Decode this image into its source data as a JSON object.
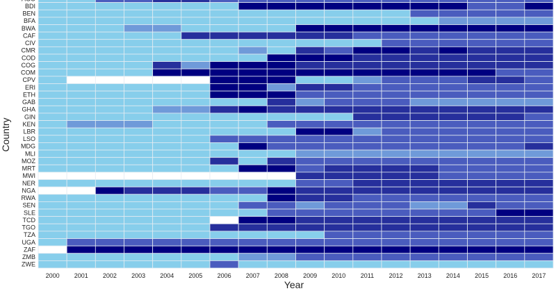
{
  "chart_data": {
    "type": "heatmap",
    "title": "",
    "xlabel": "Year",
    "ylabel": "Country",
    "x": [
      "2000",
      "2001",
      "2002",
      "2003",
      "2004",
      "2005",
      "2006",
      "2007",
      "2008",
      "2009",
      "2010",
      "2011",
      "2012",
      "2013",
      "2014",
      "2015",
      "2016",
      "2017"
    ],
    "y": [
      "AGO",
      "BDI",
      "BEN",
      "BFA",
      "BWA",
      "CAF",
      "CIV",
      "CMR",
      "COD",
      "COG",
      "COM",
      "CPV",
      "ERI",
      "ETH",
      "GAB",
      "GHA",
      "GIN",
      "KEN",
      "LBR",
      "LSO",
      "MDG",
      "MLI",
      "MOZ",
      "MRT",
      "MWI",
      "NER",
      "NGA",
      "RWA",
      "SEN",
      "SLE",
      "TCD",
      "TGO",
      "TZA",
      "UGA",
      "ZAF",
      "ZMB",
      "ZWE"
    ],
    "value_scale": "ordinal 0-5 (0 = missing/white, 1 = lightest blue, 5 = darkest navy)",
    "colors": [
      "#ffffff",
      "#87ceeb",
      "#6f9ad9",
      "#4a5cbe",
      "#262f9c",
      "#000080"
    ],
    "grid": true,
    "legend": "none",
    "values": [
      [
        1,
        1,
        3,
        3,
        4,
        4,
        3,
        3,
        3,
        3,
        3,
        3,
        3,
        3,
        3,
        3,
        3,
        3
      ],
      [
        1,
        1,
        1,
        1,
        1,
        1,
        1,
        5,
        5,
        5,
        5,
        5,
        5,
        5,
        5,
        3,
        3,
        5
      ],
      [
        1,
        1,
        1,
        1,
        1,
        1,
        1,
        1,
        1,
        1,
        1,
        1,
        1,
        3,
        3,
        3,
        3,
        3
      ],
      [
        1,
        1,
        1,
        1,
        1,
        1,
        1,
        1,
        1,
        1,
        1,
        1,
        1,
        1,
        2,
        2,
        2,
        2
      ],
      [
        1,
        1,
        1,
        2,
        2,
        1,
        1,
        1,
        1,
        5,
        5,
        5,
        5,
        5,
        5,
        5,
        5,
        5
      ],
      [
        1,
        1,
        1,
        1,
        1,
        4,
        4,
        4,
        4,
        4,
        4,
        3,
        3,
        3,
        3,
        3,
        3,
        3
      ],
      [
        1,
        1,
        1,
        1,
        1,
        1,
        1,
        1,
        1,
        1,
        1,
        1,
        3,
        3,
        3,
        3,
        3,
        3
      ],
      [
        1,
        1,
        1,
        1,
        1,
        1,
        1,
        2,
        1,
        4,
        3,
        5,
        5,
        4,
        5,
        4,
        4,
        4
      ],
      [
        1,
        1,
        1,
        1,
        1,
        1,
        1,
        1,
        5,
        5,
        5,
        4,
        4,
        4,
        4,
        4,
        4,
        4
      ],
      [
        1,
        1,
        1,
        1,
        4,
        2,
        5,
        5,
        5,
        4,
        4,
        4,
        4,
        4,
        4,
        4,
        4,
        4
      ],
      [
        1,
        1,
        1,
        1,
        5,
        5,
        5,
        5,
        5,
        5,
        5,
        5,
        5,
        5,
        5,
        5,
        3,
        3
      ],
      [
        1,
        0,
        0,
        0,
        0,
        0,
        5,
        5,
        5,
        1,
        1,
        2,
        3,
        3,
        3,
        4,
        4,
        3
      ],
      [
        1,
        1,
        1,
        1,
        1,
        1,
        5,
        5,
        2,
        4,
        4,
        3,
        3,
        3,
        3,
        3,
        3,
        3
      ],
      [
        1,
        1,
        1,
        1,
        1,
        1,
        5,
        5,
        5,
        3,
        3,
        3,
        3,
        3,
        3,
        3,
        3,
        3
      ],
      [
        1,
        1,
        1,
        1,
        1,
        1,
        1,
        1,
        4,
        2,
        3,
        3,
        3,
        2,
        2,
        2,
        2,
        2
      ],
      [
        1,
        1,
        1,
        1,
        2,
        2,
        4,
        5,
        4,
        4,
        4,
        4,
        4,
        4,
        4,
        4,
        4,
        4
      ],
      [
        1,
        1,
        1,
        1,
        1,
        1,
        1,
        1,
        1,
        1,
        1,
        4,
        4,
        4,
        4,
        4,
        4,
        3
      ],
      [
        1,
        2,
        2,
        2,
        1,
        1,
        1,
        1,
        3,
        3,
        3,
        3,
        3,
        3,
        3,
        3,
        3,
        3
      ],
      [
        1,
        1,
        1,
        1,
        1,
        1,
        1,
        1,
        1,
        5,
        5,
        2,
        3,
        3,
        3,
        3,
        3,
        3
      ],
      [
        1,
        1,
        1,
        1,
        1,
        1,
        3,
        3,
        3,
        3,
        3,
        3,
        3,
        3,
        3,
        3,
        3,
        3
      ],
      [
        1,
        1,
        1,
        1,
        1,
        1,
        1,
        5,
        3,
        3,
        3,
        3,
        3,
        3,
        3,
        3,
        3,
        4
      ],
      [
        1,
        1,
        1,
        1,
        1,
        1,
        1,
        1,
        1,
        2,
        2,
        2,
        2,
        2,
        2,
        2,
        2,
        2
      ],
      [
        1,
        1,
        1,
        1,
        1,
        1,
        4,
        1,
        4,
        3,
        3,
        3,
        3,
        3,
        3,
        3,
        3,
        3
      ],
      [
        1,
        1,
        1,
        1,
        1,
        1,
        1,
        5,
        5,
        3,
        4,
        4,
        4,
        4,
        3,
        3,
        3,
        3
      ],
      [
        0,
        0,
        0,
        0,
        0,
        0,
        0,
        0,
        0,
        4,
        4,
        4,
        4,
        4,
        3,
        3,
        3,
        3
      ],
      [
        1,
        1,
        1,
        1,
        1,
        1,
        1,
        1,
        1,
        3,
        3,
        4,
        4,
        4,
        4,
        4,
        4,
        4
      ],
      [
        0,
        0,
        5,
        4,
        4,
        4,
        3,
        3,
        5,
        4,
        4,
        4,
        4,
        4,
        4,
        4,
        4,
        4
      ],
      [
        1,
        1,
        1,
        1,
        1,
        1,
        1,
        1,
        5,
        4,
        4,
        3,
        3,
        3,
        3,
        3,
        3,
        3
      ],
      [
        1,
        1,
        1,
        1,
        1,
        1,
        1,
        3,
        3,
        2,
        3,
        3,
        3,
        2,
        2,
        4,
        3,
        3
      ],
      [
        1,
        1,
        1,
        1,
        1,
        1,
        1,
        1,
        3,
        3,
        3,
        3,
        3,
        3,
        3,
        3,
        5,
        5
      ],
      [
        1,
        1,
        1,
        1,
        1,
        1,
        0,
        5,
        5,
        4,
        4,
        4,
        4,
        4,
        4,
        4,
        4,
        4
      ],
      [
        1,
        1,
        1,
        1,
        1,
        1,
        4,
        4,
        4,
        4,
        4,
        4,
        4,
        4,
        4,
        4,
        4,
        4
      ],
      [
        1,
        1,
        1,
        1,
        1,
        1,
        1,
        1,
        1,
        1,
        3,
        3,
        3,
        3,
        3,
        3,
        3,
        3
      ],
      [
        1,
        3,
        3,
        3,
        3,
        3,
        3,
        3,
        3,
        3,
        3,
        3,
        3,
        3,
        3,
        3,
        3,
        3
      ],
      [
        0,
        5,
        5,
        5,
        5,
        5,
        5,
        5,
        5,
        5,
        5,
        5,
        5,
        5,
        5,
        5,
        5,
        5
      ],
      [
        1,
        1,
        1,
        1,
        1,
        1,
        1,
        2,
        2,
        3,
        3,
        3,
        3,
        3,
        3,
        3,
        3,
        3
      ],
      [
        1,
        1,
        1,
        1,
        1,
        1,
        3,
        1,
        1,
        1,
        1,
        1,
        1,
        1,
        1,
        1,
        1,
        1
      ]
    ]
  }
}
